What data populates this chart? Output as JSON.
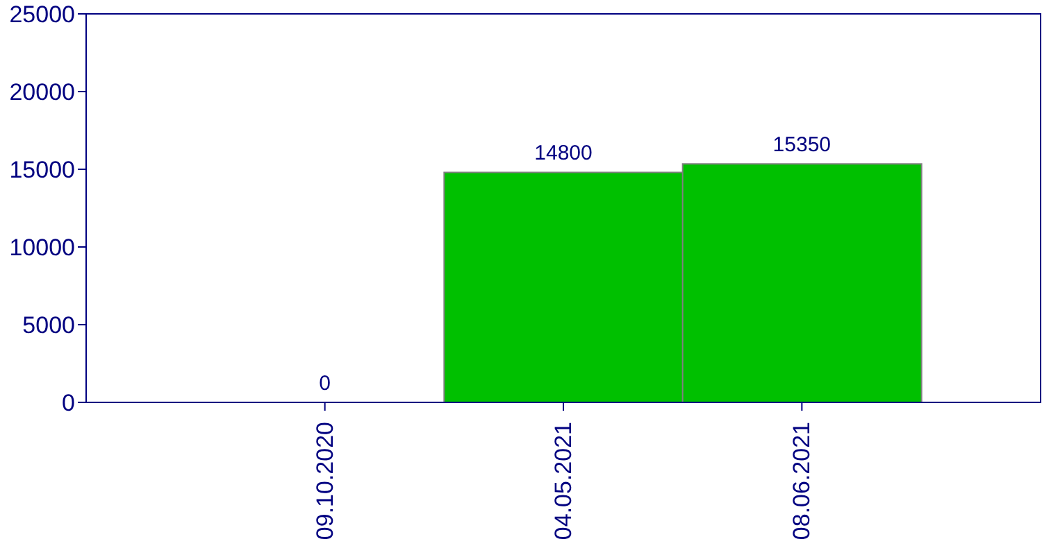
{
  "chart_data": {
    "type": "bar",
    "categories": [
      "09.10.2020",
      "04.05.2021",
      "08.06.2021"
    ],
    "values": [
      0,
      14800,
      15350
    ],
    "color": "#00c000",
    "ylim": [
      0,
      25000
    ],
    "yticks": [
      0,
      5000,
      10000,
      15000,
      20000,
      25000
    ],
    "data_labels": true
  }
}
